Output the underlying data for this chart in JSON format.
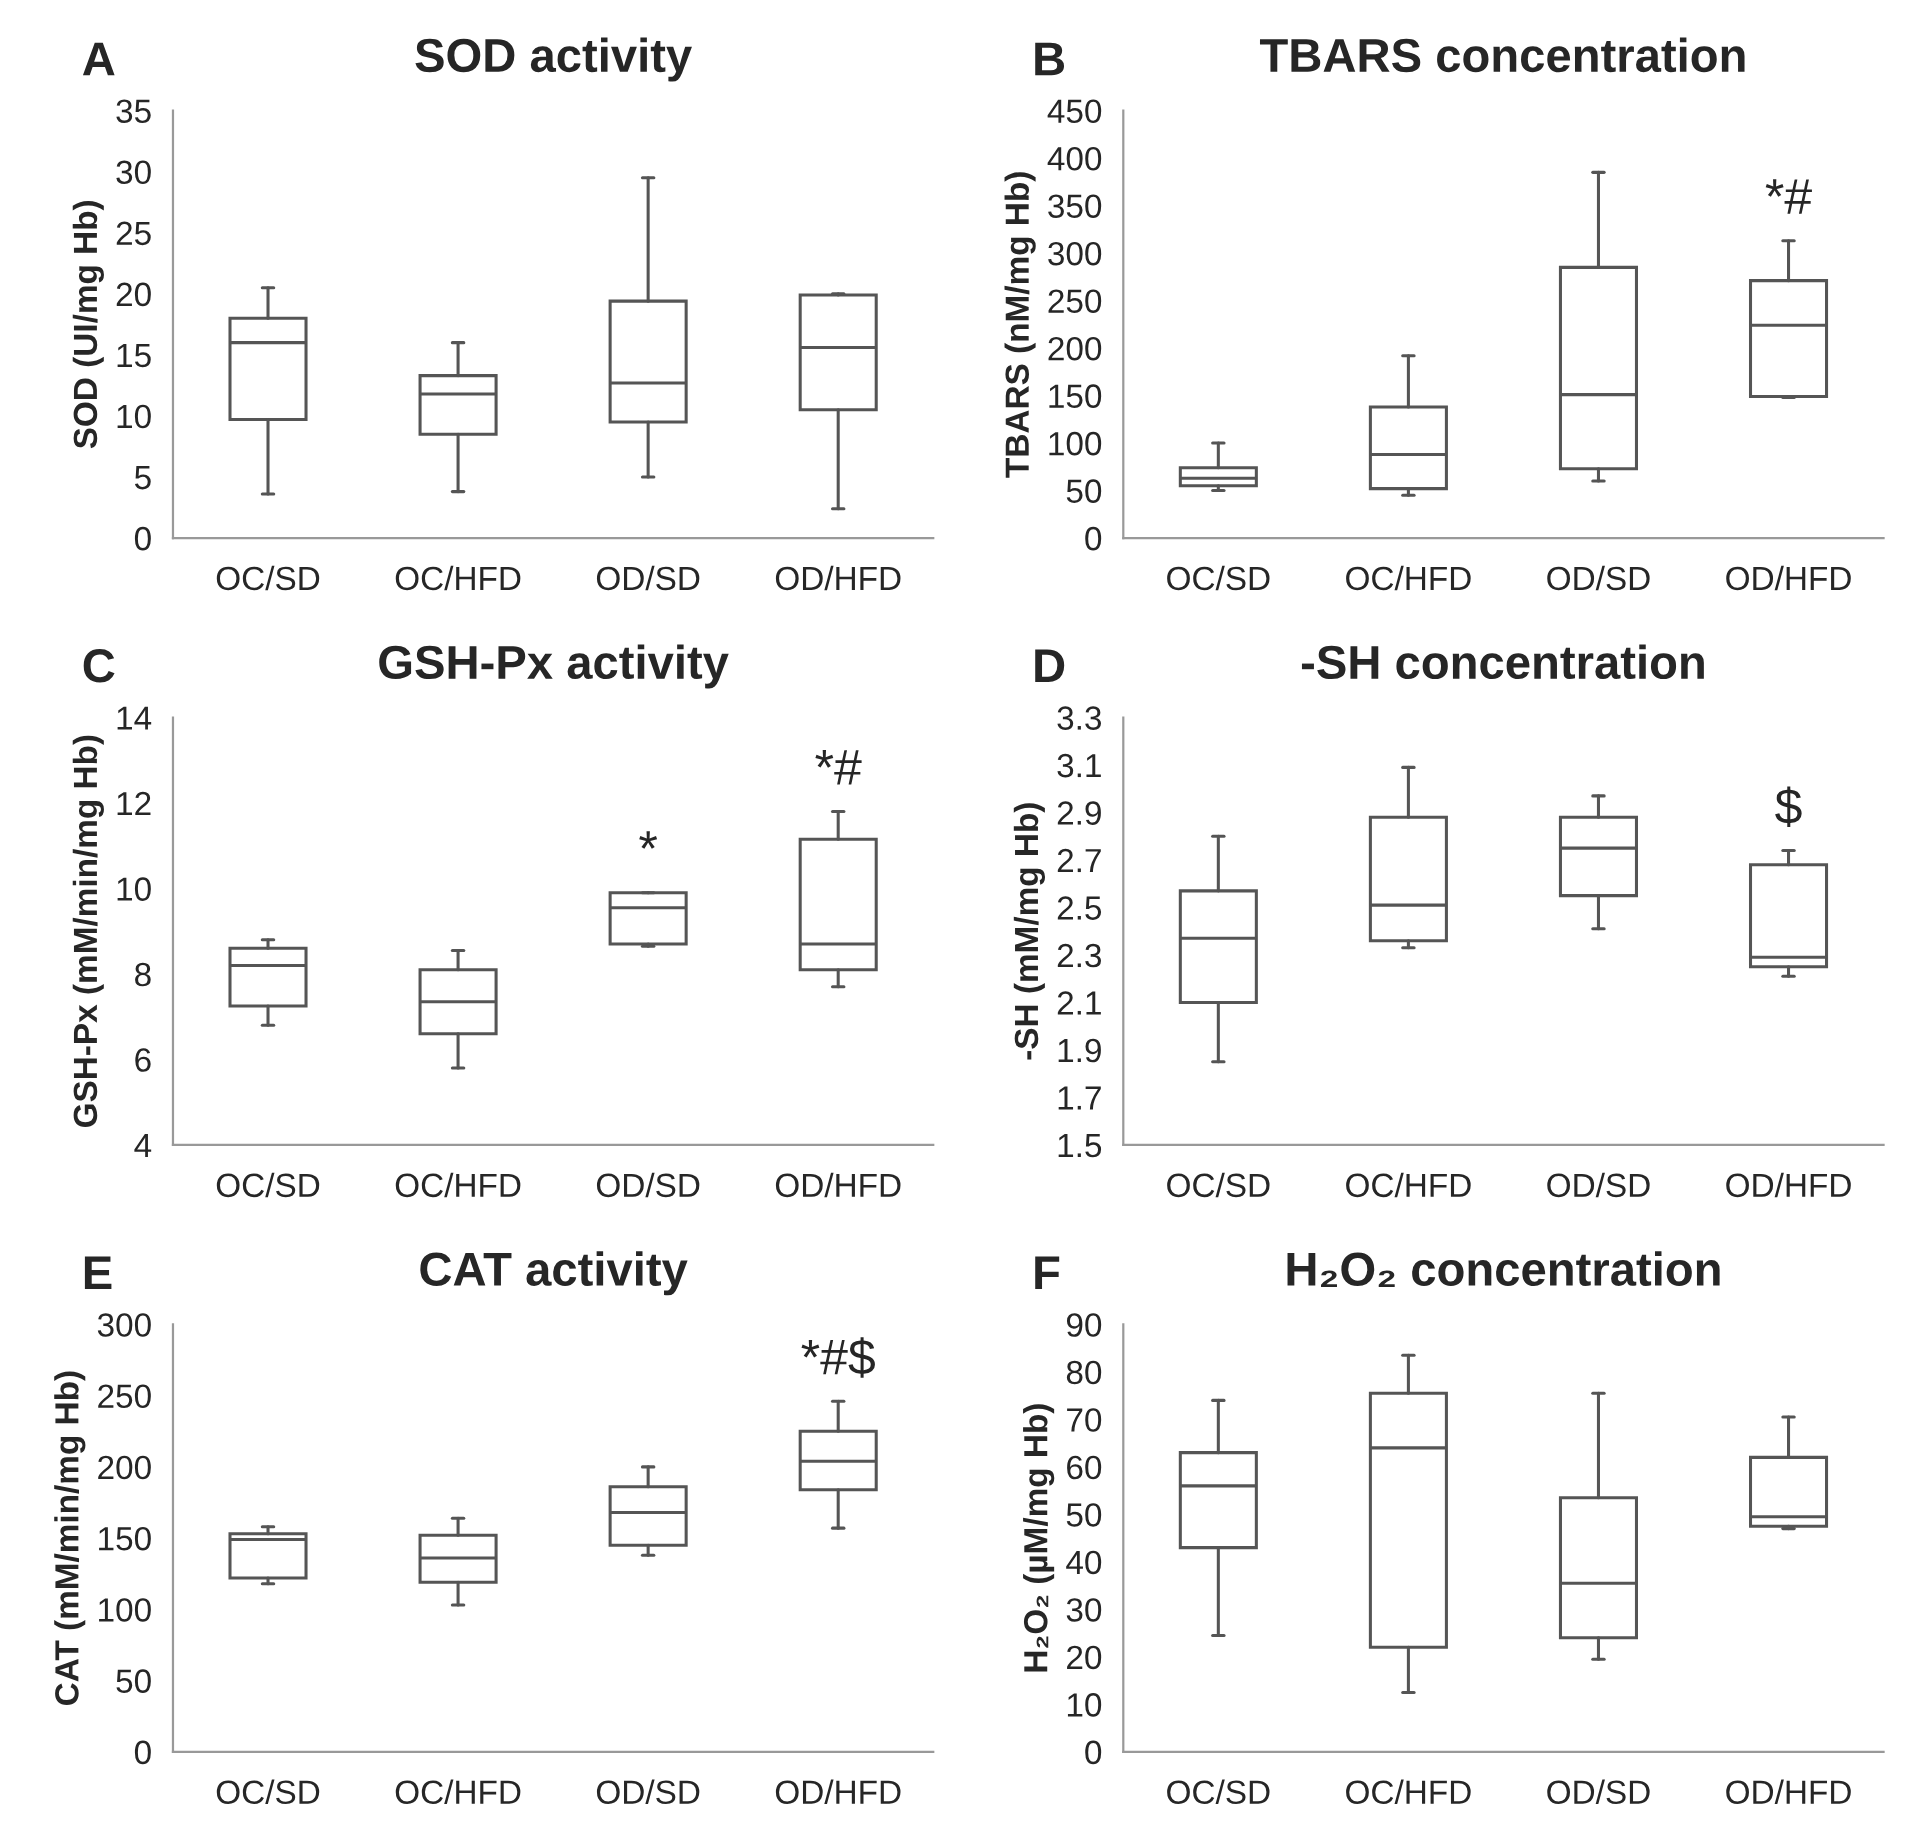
{
  "chart_data": [
    {
      "type": "box",
      "title": "SOD activity",
      "ylabel": "SOD (UI/mg Hb)",
      "categories": [
        "OC/SD",
        "OC/HFD",
        "OD/SD",
        "OD/HFD"
      ],
      "ylim": [
        0,
        35
      ],
      "yticks": [
        0,
        5,
        10,
        15,
        20,
        25,
        30,
        35
      ],
      "grid": false,
      "annotations": [
        "A"
      ],
      "boxes": [
        {
          "low": 3.6,
          "q1": 9.7,
          "median": 16,
          "q3": 18,
          "high": 20.5
        },
        {
          "low": 3.8,
          "q1": 8.5,
          "median": 11.8,
          "q3": 13.3,
          "high": 16
        },
        {
          "low": 5,
          "q1": 9.5,
          "median": 12.7,
          "q3": 19.4,
          "high": 29.5
        },
        {
          "low": 2.4,
          "q1": 10.5,
          "median": 15.6,
          "q3": 19.9,
          "high": 20
        }
      ]
    },
    {
      "type": "box",
      "title": "TBARS concentration",
      "ylabel": "TBARS (nM/mg Hb)",
      "categories": [
        "OC/SD",
        "OC/HFD",
        "OD/SD",
        "OD/HFD"
      ],
      "ylim": [
        0,
        450
      ],
      "yticks": [
        0,
        50,
        100,
        150,
        200,
        250,
        300,
        350,
        400,
        450
      ],
      "grid": false,
      "annotations": [
        "B",
        {
          "text": "*#",
          "x": "OD/HFD",
          "y": 313
        }
      ],
      "boxes": [
        {
          "low": 50,
          "q1": 55,
          "median": 63,
          "q3": 74,
          "high": 100
        },
        {
          "low": 45,
          "q1": 52,
          "median": 88,
          "q3": 138,
          "high": 192
        },
        {
          "low": 60,
          "q1": 73,
          "median": 151,
          "q3": 285,
          "high": 385
        },
        {
          "low": 148,
          "q1": 149,
          "median": 224,
          "q3": 271,
          "high": 313
        }
      ]
    },
    {
      "type": "box",
      "title": "GSH-Px activity",
      "ylabel": "GSH-Px (mM/min/mg Hb)",
      "categories": [
        "OC/SD",
        "OC/HFD",
        "OD/SD",
        "OD/HFD"
      ],
      "ylim": [
        4,
        14
      ],
      "yticks": [
        4,
        6,
        8,
        10,
        12,
        14
      ],
      "grid": false,
      "annotations": [
        "C",
        {
          "text": "*",
          "x": "OD/SD",
          "y": 9.9
        },
        {
          "text": "*#",
          "x": "OD/HFD",
          "y": 11.8
        }
      ],
      "boxes": [
        {
          "low": 6.8,
          "q1": 7.25,
          "median": 8.2,
          "q3": 8.6,
          "high": 8.8
        },
        {
          "low": 5.8,
          "q1": 6.6,
          "median": 7.35,
          "q3": 8.1,
          "high": 8.55
        },
        {
          "low": 8.65,
          "q1": 8.7,
          "median": 9.55,
          "q3": 9.9,
          "high": 9.9
        },
        {
          "low": 7.7,
          "q1": 8.1,
          "median": 8.7,
          "q3": 11.15,
          "high": 11.8
        }
      ]
    },
    {
      "type": "box",
      "title": "-SH concentration",
      "ylabel": "-SH (mM/mg Hb)",
      "categories": [
        "OC/SD",
        "OC/HFD",
        "OD/SD",
        "OD/HFD"
      ],
      "ylim": [
        1.5,
        3.3
      ],
      "yticks": [
        1.5,
        1.7,
        1.9,
        2.1,
        2.3,
        2.5,
        2.7,
        2.9,
        3.1,
        3.3
      ],
      "grid": false,
      "annotations": [
        "D",
        {
          "text": "$",
          "x": "OD/HFD",
          "y": 2.74
        }
      ],
      "boxes": [
        {
          "low": 1.85,
          "q1": 2.1,
          "median": 2.37,
          "q3": 2.57,
          "high": 2.8
        },
        {
          "low": 2.33,
          "q1": 2.36,
          "median": 2.51,
          "q3": 2.88,
          "high": 3.09
        },
        {
          "low": 2.41,
          "q1": 2.55,
          "median": 2.75,
          "q3": 2.88,
          "high": 2.97
        },
        {
          "low": 2.21,
          "q1": 2.25,
          "median": 2.29,
          "q3": 2.68,
          "high": 2.74
        }
      ]
    },
    {
      "type": "box",
      "title": "CAT activity",
      "ylabel": "CAT (mM/min/mg Hb)",
      "categories": [
        "OC/SD",
        "OC/HFD",
        "OD/SD",
        "OD/HFD"
      ],
      "ylim": [
        0,
        300
      ],
      "yticks": [
        0,
        50,
        100,
        150,
        200,
        250,
        300
      ],
      "grid": false,
      "annotations": [
        "E",
        {
          "text": "*#$",
          "x": "OD/HFD",
          "y": 246
        }
      ],
      "boxes": [
        {
          "low": 118,
          "q1": 122,
          "median": 149,
          "q3": 153,
          "high": 158
        },
        {
          "low": 103,
          "q1": 119,
          "median": 136,
          "q3": 152,
          "high": 164
        },
        {
          "low": 138,
          "q1": 145,
          "median": 168,
          "q3": 186,
          "high": 200
        },
        {
          "low": 157,
          "q1": 184,
          "median": 204,
          "q3": 225,
          "high": 246
        }
      ]
    },
    {
      "type": "box",
      "title": "H₂O₂ concentration",
      "ylabel": "H₂O₂ (µM/mg Hb)",
      "categories": [
        "OC/SD",
        "OC/HFD",
        "OD/SD",
        "OD/HFD"
      ],
      "ylim": [
        0,
        90
      ],
      "yticks": [
        0,
        10,
        20,
        30,
        40,
        50,
        60,
        70,
        80,
        90
      ],
      "grid": false,
      "annotations": [
        "F"
      ],
      "boxes": [
        {
          "low": 24.5,
          "q1": 43,
          "median": 56,
          "q3": 63,
          "high": 74
        },
        {
          "low": 12.5,
          "q1": 22,
          "median": 64,
          "q3": 75.5,
          "high": 83.5
        },
        {
          "low": 19.5,
          "q1": 24,
          "median": 35.5,
          "q3": 53.5,
          "high": 75.5
        },
        {
          "low": 47,
          "q1": 47.5,
          "median": 49.5,
          "q3": 62,
          "high": 70.5
        }
      ]
    }
  ]
}
